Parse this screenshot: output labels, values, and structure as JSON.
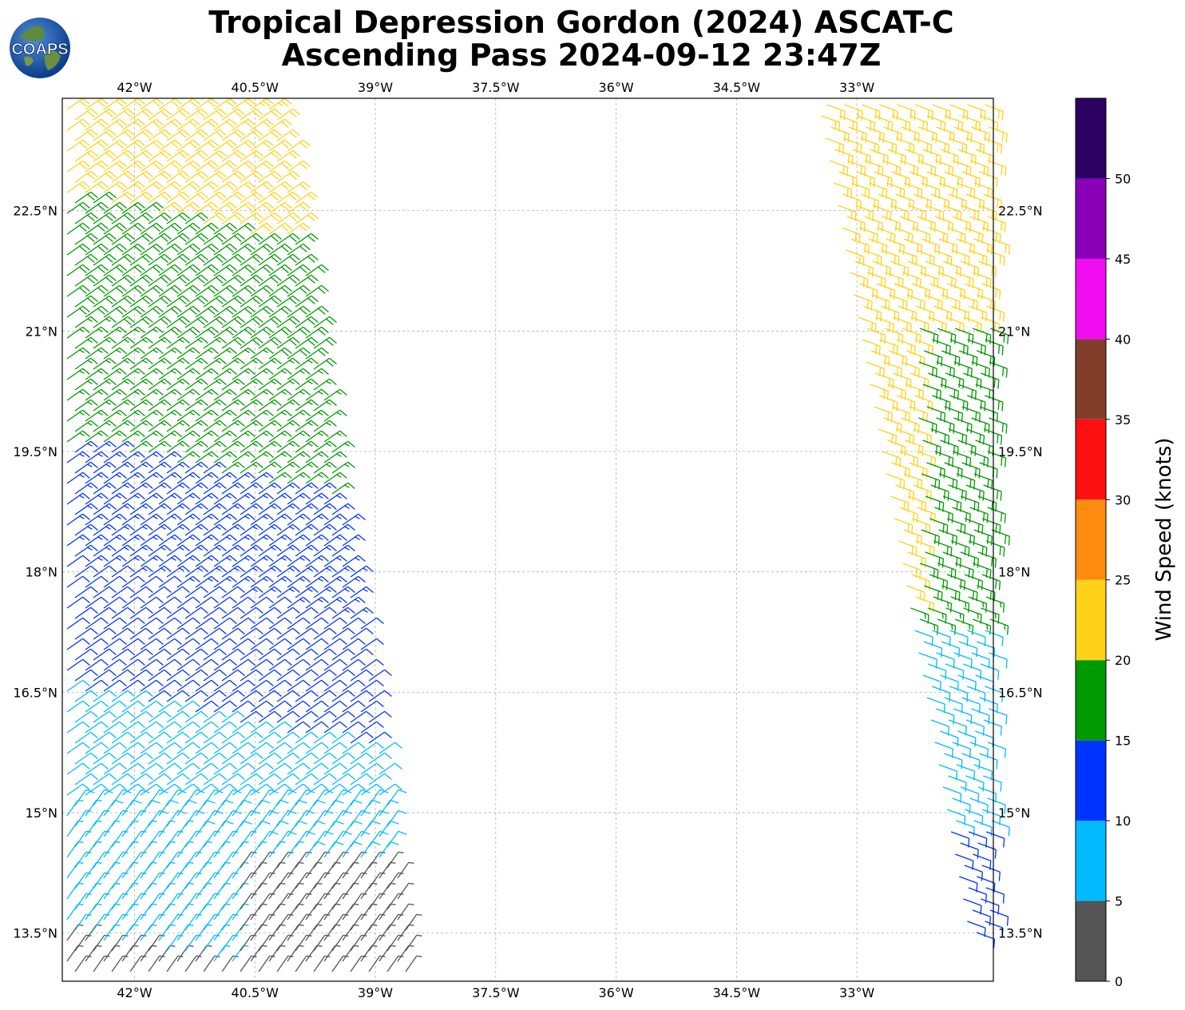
{
  "title": {
    "line1": "Tropical Depression Gordon (2024) ASCAT-C",
    "line2": "Ascending Pass 2024-09-12 23:47Z"
  },
  "logo": {
    "text": "COAPS",
    "icon": "globe-logo"
  },
  "map": {
    "lon_range": [
      -42.9,
      -31.3
    ],
    "lat_range": [
      12.9,
      23.9
    ],
    "lon_ticks": [
      "42°W",
      "40.5°W",
      "39°W",
      "37.5°W",
      "36°W",
      "34.5°W",
      "33°W"
    ],
    "lon_tick_values": [
      -42,
      -40.5,
      -39,
      -37.5,
      -36,
      -34.5,
      -33
    ],
    "lat_ticks": [
      "22.5°N",
      "21°N",
      "19.5°N",
      "18°N",
      "16.5°N",
      "15°N",
      "13.5°N"
    ],
    "lat_tick_values": [
      22.5,
      21,
      19.5,
      18,
      16.5,
      15,
      13.5
    ],
    "grid": true
  },
  "colorbar": {
    "label": "Wind Speed (knots)",
    "ticks": [
      "0",
      "5",
      "10",
      "15",
      "20",
      "25",
      "30",
      "35",
      "40",
      "45",
      "50"
    ],
    "bins": [
      {
        "min": 0,
        "max": 5,
        "color": "#555555"
      },
      {
        "min": 5,
        "max": 10,
        "color": "#00bbff"
      },
      {
        "min": 10,
        "max": 15,
        "color": "#0033ff"
      },
      {
        "min": 15,
        "max": 20,
        "color": "#009900"
      },
      {
        "min": 20,
        "max": 25,
        "color": "#ffd21a"
      },
      {
        "min": 25,
        "max": 30,
        "color": "#ff8c0f"
      },
      {
        "min": 30,
        "max": 35,
        "color": "#ff1010"
      },
      {
        "min": 35,
        "max": 40,
        "color": "#833d2b"
      },
      {
        "min": 40,
        "max": 45,
        "color": "#f00ef0"
      },
      {
        "min": 45,
        "max": 50,
        "color": "#8a00b8"
      },
      {
        "min": 50,
        "max": 55,
        "color": "#2c0060"
      }
    ]
  },
  "wind_colors": {
    "calm": "#555555",
    "light": "#00bbff",
    "moderate": "#0033ff",
    "fresh": "#009900",
    "strong": "#ffd21a"
  }
}
